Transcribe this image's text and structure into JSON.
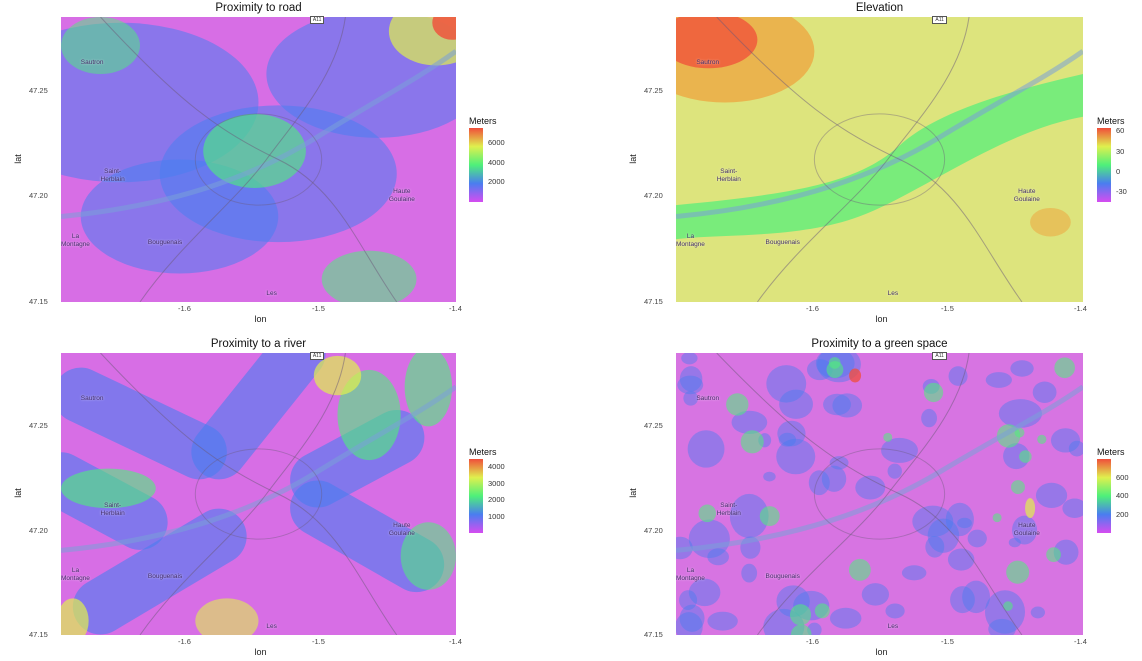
{
  "axes": {
    "xlabel": "lon",
    "ylabel": "lat"
  },
  "map_labels": {
    "road_shield": "A11",
    "places": [
      "Sautron",
      "Saint-\nHerblain",
      "La\nMontagne",
      "Bouguenais",
      "Haute\nGoulaine",
      "Les"
    ]
  },
  "legend_title": "Meters",
  "colors": {
    "magenta": "#d64cf0",
    "blue": "#4a7df0",
    "green": "#4ef07a",
    "yellow": "#dff04e",
    "red": "#f04e3a",
    "basemap": "#d9d3c2"
  },
  "chart_data": [
    {
      "type": "heatmap",
      "title": "Proximity to road",
      "xlabel": "lon",
      "ylabel": "lat",
      "x_ticks": [
        "-1.6",
        "-1.5",
        "-1.4"
      ],
      "x_tick_values": [
        -1.6,
        -1.5,
        -1.4
      ],
      "y_ticks": [
        "47.25",
        "47.20",
        "47.15"
      ],
      "y_tick_values": [
        47.25,
        47.2,
        47.15
      ],
      "xlim": [
        -1.7,
        -1.4
      ],
      "ylim": [
        47.15,
        47.285
      ],
      "legend": {
        "title": "Meters",
        "labels": [
          "6000",
          "4000",
          "2000"
        ],
        "values": [
          6000,
          4000,
          2000
        ],
        "range": [
          0,
          7500
        ]
      },
      "grid": false
    },
    {
      "type": "heatmap",
      "title": "Elevation",
      "xlabel": "lon",
      "ylabel": "lat",
      "x_ticks": [
        "-1.6",
        "-1.5",
        "-1.4"
      ],
      "x_tick_values": [
        -1.6,
        -1.5,
        -1.4
      ],
      "y_ticks": [
        "47.25",
        "47.20",
        "47.15"
      ],
      "y_tick_values": [
        47.25,
        47.2,
        47.15
      ],
      "xlim": [
        -1.7,
        -1.4
      ],
      "ylim": [
        47.15,
        47.285
      ],
      "legend": {
        "title": "Meters",
        "labels": [
          "60",
          "30",
          "0",
          "-30"
        ],
        "values": [
          60,
          30,
          0,
          -30
        ],
        "range": [
          -45,
          65
        ]
      },
      "grid": false
    },
    {
      "type": "heatmap",
      "title": "Proximity to a river",
      "xlabel": "lon",
      "ylabel": "lat",
      "x_ticks": [
        "-1.6",
        "-1.5",
        "-1.4"
      ],
      "x_tick_values": [
        -1.6,
        -1.5,
        -1.4
      ],
      "y_ticks": [
        "47.25",
        "47.20",
        "47.15"
      ],
      "y_tick_values": [
        47.25,
        47.2,
        47.15
      ],
      "xlim": [
        -1.7,
        -1.4
      ],
      "ylim": [
        47.15,
        47.285
      ],
      "legend": {
        "title": "Meters",
        "labels": [
          "4000",
          "3000",
          "2000",
          "1000"
        ],
        "values": [
          4000,
          3000,
          2000,
          1000
        ],
        "range": [
          0,
          4500
        ]
      },
      "grid": false
    },
    {
      "type": "heatmap",
      "title": "Proximity to a green space",
      "xlabel": "lon",
      "ylabel": "lat",
      "x_ticks": [
        "-1.6",
        "-1.5",
        "-1.4"
      ],
      "x_tick_values": [
        -1.6,
        -1.5,
        -1.4
      ],
      "y_ticks": [
        "47.25",
        "47.20",
        "47.15"
      ],
      "y_tick_values": [
        47.25,
        47.2,
        47.15
      ],
      "xlim": [
        -1.7,
        -1.4
      ],
      "ylim": [
        47.15,
        47.285
      ],
      "legend": {
        "title": "Meters",
        "labels": [
          "600",
          "400",
          "200"
        ],
        "values": [
          600,
          400,
          200
        ],
        "range": [
          0,
          800
        ]
      },
      "grid": false
    }
  ]
}
